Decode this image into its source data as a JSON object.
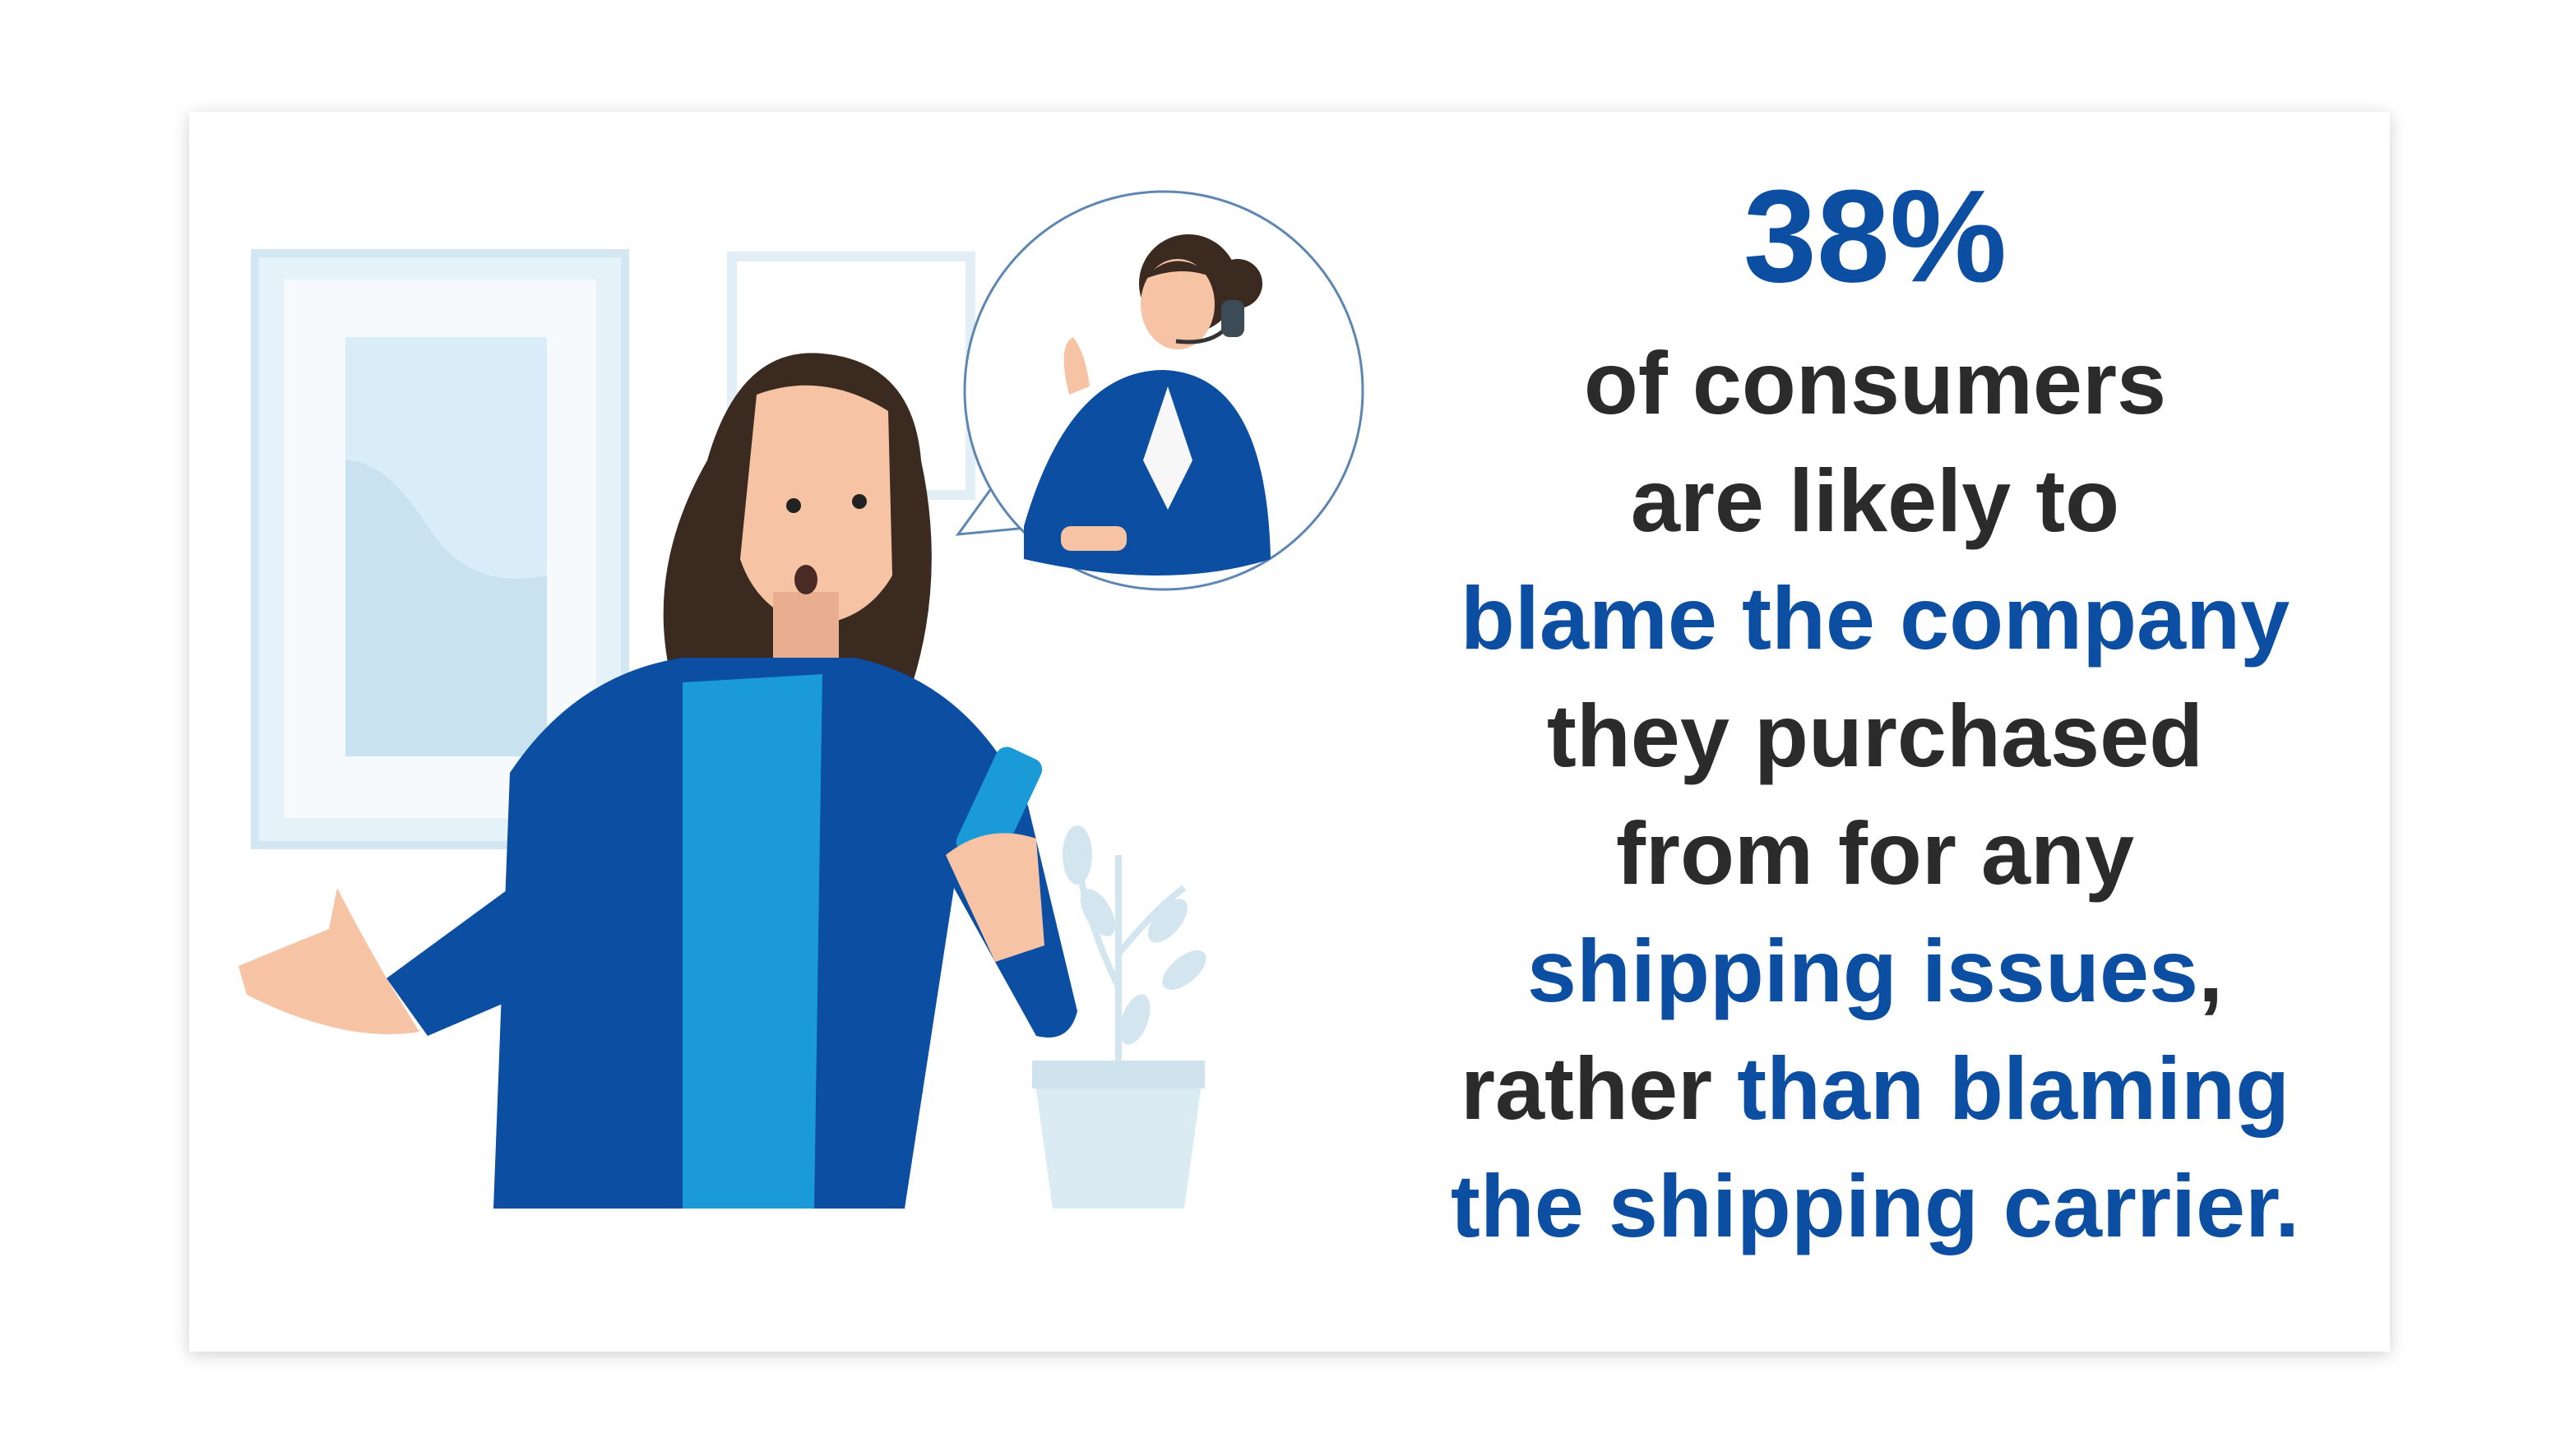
{
  "headline": {
    "stat": "38%",
    "color": "#0b4ea2"
  },
  "statement": {
    "lines": [
      [
        {
          "text": "of consumers",
          "color": "#2b2b2b"
        }
      ],
      [
        {
          "text": "are likely to",
          "color": "#2b2b2b"
        }
      ],
      [
        {
          "text": "blame the company",
          "color": "#0b4ea2"
        }
      ],
      [
        {
          "text": "they purchased",
          "color": "#2b2b2b"
        }
      ],
      [
        {
          "text": "from for any",
          "color": "#2b2b2b"
        }
      ],
      [
        {
          "text": "shipping issues",
          "color": "#0b4ea2"
        },
        {
          "text": ",",
          "color": "#2b2b2b"
        }
      ],
      [
        {
          "text": "rather",
          "color": "#2b2b2b"
        },
        {
          "text": " than blaming",
          "color": "#0b4ea2"
        }
      ],
      [
        {
          "text": "the shipping carrier.",
          "color": "#0b4ea2"
        }
      ]
    ]
  }
}
